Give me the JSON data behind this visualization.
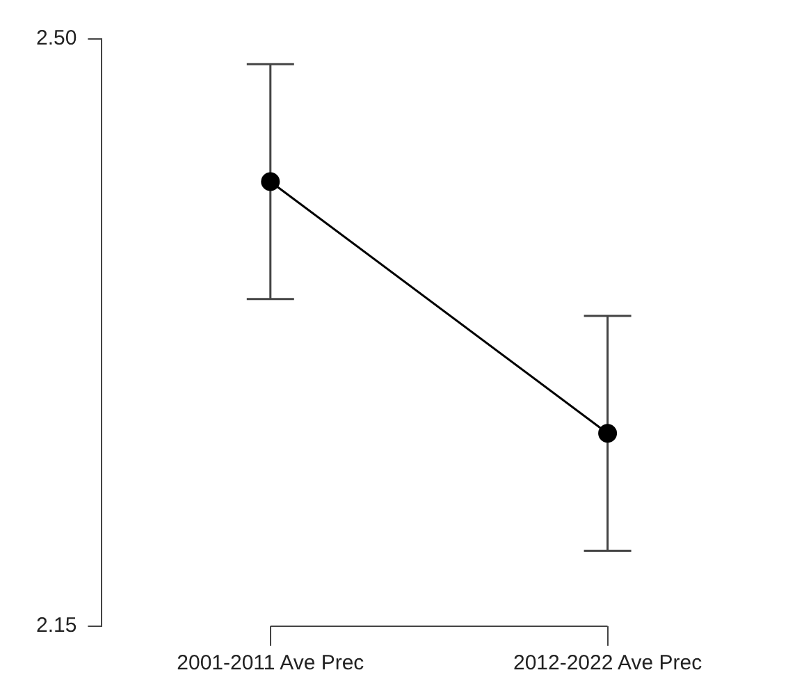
{
  "chart_data": {
    "type": "line",
    "categories": [
      "2001-2011 Ave Prec",
      "2012-2022 Ave Prec"
    ],
    "series": [
      {
        "color": "#000000",
        "values": [
          2.415,
          2.265
        ],
        "errors": [
          [
            2.345,
            2.485
          ],
          [
            2.195,
            2.335
          ]
        ]
      }
    ],
    "ylim": [
      2.15,
      2.5
    ],
    "yticks": [
      {
        "value": 2.15,
        "label": "2.15"
      },
      {
        "value": 2.5,
        "label": "2.50"
      }
    ],
    "grid": false,
    "legend": false,
    "marker": "circle",
    "line_style": "solid"
  }
}
